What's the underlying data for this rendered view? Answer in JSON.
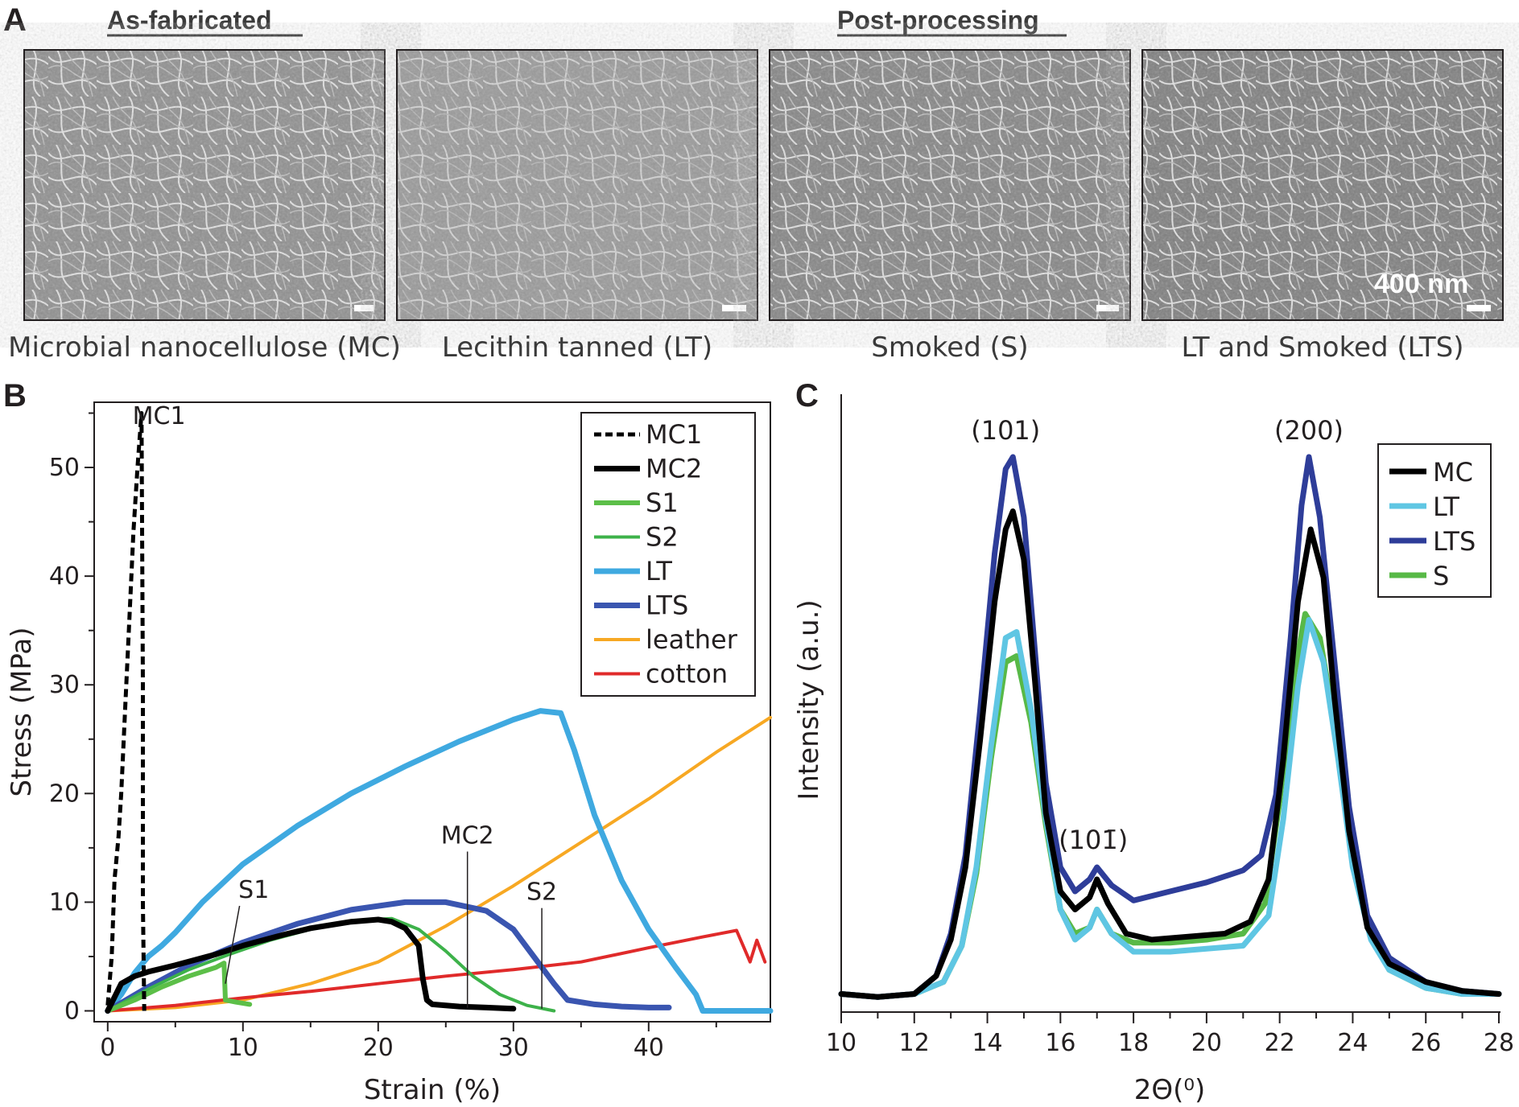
{
  "panel_a": {
    "label": "A",
    "header_left": "As-fabricated",
    "header_right": "Post-processing",
    "images": [
      {
        "caption": "Microbial nanocellulose (MC)",
        "scalebar_text": ""
      },
      {
        "caption": "Lecithin tanned (LT)",
        "scalebar_text": ""
      },
      {
        "caption": "Smoked (S)",
        "scalebar_text": ""
      },
      {
        "caption": "LT and Smoked (LTS)",
        "scalebar_text": "400 nm"
      }
    ]
  },
  "panel_b": {
    "label": "B"
  },
  "panel_c": {
    "label": "C"
  },
  "chart_data": [
    {
      "type": "line",
      "panel": "B",
      "xlabel": "Strain (%)",
      "ylabel": "Stress (MPa)",
      "xlim": [
        -1,
        49
      ],
      "ylim": [
        -1,
        56
      ],
      "xticks": [
        0,
        10,
        20,
        30,
        40
      ],
      "yticks": [
        0,
        10,
        20,
        30,
        40,
        50
      ],
      "legend_position": "top-right",
      "series": [
        {
          "name": "MC1",
          "color": "#000000",
          "dash": true,
          "width": 5,
          "x": [
            0,
            0.3,
            0.5,
            0.8,
            1.0,
            1.3,
            1.6,
            1.9,
            2.2,
            2.5,
            2.6,
            2.6,
            2.7
          ],
          "y": [
            0.5,
            5,
            12,
            16,
            20,
            28,
            36,
            44,
            50,
            55,
            30,
            10,
            0
          ]
        },
        {
          "name": "MC2",
          "color": "#000000",
          "dash": false,
          "width": 7,
          "x": [
            0,
            1,
            2,
            3,
            5,
            8,
            10,
            13,
            15,
            18,
            20,
            21,
            22,
            23,
            23.3,
            23.6,
            24,
            26,
            28,
            30
          ],
          "y": [
            0,
            2.5,
            3.2,
            3.6,
            4.2,
            5.2,
            6,
            7,
            7.6,
            8.2,
            8.4,
            8.2,
            7.6,
            6,
            3,
            1,
            0.6,
            0.4,
            0.3,
            0.2
          ]
        },
        {
          "name": "S1",
          "color": "#5cbf48",
          "dash": false,
          "width": 6,
          "x": [
            0,
            2,
            4,
            6,
            8,
            8.6,
            8.7,
            9.5,
            10.5
          ],
          "y": [
            0,
            1,
            2.2,
            3.2,
            4,
            4.4,
            1,
            0.8,
            0.6
          ]
        },
        {
          "name": "S2",
          "color": "#3db24a",
          "dash": false,
          "width": 4,
          "x": [
            0,
            3,
            6,
            9,
            12,
            15,
            18,
            21,
            23,
            25,
            27,
            29,
            31,
            33
          ],
          "y": [
            0,
            2,
            3.8,
            5.2,
            6.5,
            7.5,
            8.3,
            8.5,
            7.5,
            5.5,
            3.2,
            1.5,
            0.5,
            0
          ]
        },
        {
          "name": "LT",
          "color": "#3fa9e0",
          "dash": false,
          "width": 7,
          "x": [
            0,
            1,
            2,
            3,
            4,
            5,
            7,
            10,
            14,
            18,
            22,
            26,
            30,
            32,
            33.5,
            34.5,
            36,
            38,
            40,
            42,
            43.5,
            44,
            44.2,
            46,
            49
          ],
          "y": [
            0,
            1.5,
            3.5,
            5,
            6,
            7.2,
            10,
            13.5,
            17,
            20,
            22.5,
            24.8,
            26.8,
            27.6,
            27.4,
            24,
            18,
            12,
            7.5,
            4,
            1.5,
            0,
            0,
            0,
            0
          ]
        },
        {
          "name": "LTS",
          "color": "#3a55b0",
          "dash": false,
          "width": 7,
          "x": [
            0,
            3,
            6,
            10,
            14,
            18,
            22,
            25,
            28,
            30,
            31.5,
            33,
            34,
            36,
            38,
            40,
            41.5
          ],
          "y": [
            0,
            2.2,
            4.2,
            6.3,
            8,
            9.3,
            10,
            10,
            9.2,
            7.5,
            5,
            2.5,
            1,
            0.6,
            0.4,
            0.3,
            0.3
          ]
        },
        {
          "name": "leather",
          "color": "#f7a823",
          "dash": false,
          "width": 4,
          "x": [
            0,
            5,
            10,
            15,
            20,
            25,
            30,
            35,
            40,
            45,
            49
          ],
          "y": [
            0,
            0.3,
            1,
            2.5,
            4.5,
            7.8,
            11.5,
            15.5,
            19.5,
            23.8,
            27
          ]
        },
        {
          "name": "cotton",
          "color": "#e02a2a",
          "dash": false,
          "width": 4,
          "x": [
            0,
            5,
            10,
            15,
            20,
            25,
            30,
            35,
            40,
            44,
            46.5,
            47.5,
            48,
            48.6
          ],
          "y": [
            0,
            0.5,
            1.2,
            1.8,
            2.5,
            3.2,
            3.8,
            4.5,
            5.8,
            6.8,
            7.4,
            4.5,
            6.5,
            4.5
          ]
        }
      ],
      "annotations": [
        {
          "text": "MC1",
          "x": 3.8,
          "y": 54,
          "line_to": null
        },
        {
          "text": "S1",
          "x": 10.8,
          "y": 10.4,
          "line_to": [
            8.7,
            2.5
          ]
        },
        {
          "text": "MC2",
          "x": 26.6,
          "y": 15.4,
          "line_to": [
            26.6,
            0.3
          ]
        },
        {
          "text": "S2",
          "x": 32.1,
          "y": 10.2,
          "line_to": [
            32.1,
            0.2
          ]
        }
      ]
    },
    {
      "type": "line",
      "panel": "C",
      "xlabel": "2Θ(⁰)",
      "ylabel": "Intensity (a.u.)",
      "xlim": [
        10,
        28
      ],
      "ylim": [
        0,
        100
      ],
      "xticks": [
        10,
        12,
        14,
        16,
        18,
        20,
        22,
        24,
        26,
        28
      ],
      "legend_position": "top-right",
      "series": [
        {
          "name": "MC",
          "color": "#000000",
          "x": [
            10,
            11,
            12,
            12.6,
            13,
            13.4,
            13.8,
            14.2,
            14.5,
            14.7,
            15,
            15.3,
            15.6,
            16,
            16.4,
            16.8,
            17,
            17.3,
            17.8,
            18.5,
            19.5,
            20.5,
            21.2,
            21.7,
            22.1,
            22.5,
            22.85,
            23.2,
            23.5,
            23.9,
            24.4,
            25,
            26,
            27,
            28
          ],
          "y": [
            3,
            2.5,
            3,
            6,
            12,
            24,
            45,
            68,
            80,
            83,
            75,
            55,
            33,
            20,
            17,
            19,
            22,
            18,
            13,
            12,
            12.5,
            13,
            15,
            22,
            42,
            68,
            80,
            72,
            52,
            30,
            14,
            8,
            5,
            3.5,
            3
          ]
        },
        {
          "name": "LT",
          "color": "#5fc6e3",
          "x": [
            10,
            11,
            12,
            12.8,
            13.3,
            13.7,
            14.1,
            14.5,
            14.8,
            15.2,
            15.6,
            16,
            16.4,
            16.8,
            17,
            17.4,
            18,
            19,
            20,
            21,
            21.7,
            22.1,
            22.5,
            22.8,
            23.2,
            23.6,
            24,
            24.5,
            25,
            26,
            27,
            28
          ],
          "y": [
            3,
            2.5,
            3,
            5,
            11,
            24,
            44,
            62,
            63,
            50,
            32,
            17,
            12,
            14,
            17,
            13,
            10,
            10,
            10.5,
            11,
            16,
            32,
            54,
            65,
            58,
            42,
            24,
            12,
            7,
            4,
            3,
            3
          ]
        },
        {
          "name": "LTS",
          "color": "#2e3d99",
          "x": [
            10,
            11,
            12,
            12.6,
            13,
            13.4,
            13.8,
            14.2,
            14.5,
            14.7,
            15,
            15.3,
            15.6,
            16,
            16.4,
            16.8,
            17,
            17.4,
            18,
            19,
            20,
            21,
            21.5,
            21.9,
            22.3,
            22.6,
            22.8,
            23.1,
            23.5,
            23.9,
            24.4,
            25,
            26,
            27,
            28
          ],
          "y": [
            3,
            2.5,
            3,
            6,
            13,
            26,
            50,
            76,
            90,
            92,
            82,
            60,
            38,
            24,
            20,
            22,
            24,
            21,
            18.5,
            20,
            21.5,
            23.5,
            26,
            36,
            62,
            84,
            92,
            82,
            58,
            34,
            16,
            9,
            5,
            3.5,
            3
          ]
        },
        {
          "name": "S",
          "color": "#58b947",
          "x": [
            10,
            11,
            12,
            12.8,
            13.3,
            13.7,
            14.1,
            14.5,
            14.8,
            15.2,
            15.6,
            16,
            16.4,
            16.8,
            17,
            17.4,
            18,
            19,
            20,
            21,
            21.6,
            22,
            22.4,
            22.7,
            23.1,
            23.5,
            24,
            24.5,
            25,
            26,
            27,
            28
          ],
          "y": [
            3,
            2.5,
            3,
            5,
            11,
            23,
            42,
            58,
            59,
            48,
            31,
            17,
            13,
            14,
            17,
            13,
            11.5,
            11.5,
            12,
            13,
            18,
            35,
            56,
            66,
            62,
            48,
            27,
            13,
            7,
            4,
            3,
            3
          ]
        }
      ],
      "annotations": [
        {
          "text": "(101)",
          "x": 14.5
        },
        {
          "text": "(101̄)",
          "x": 16.9
        },
        {
          "text": "(200)",
          "x": 22.8
        }
      ]
    }
  ]
}
